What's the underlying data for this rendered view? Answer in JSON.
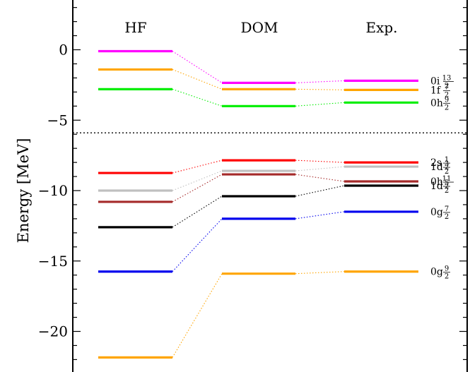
{
  "chart_data": {
    "type": "level-diagram",
    "ylabel": "Energy [MeV]",
    "ylim": [
      -22.4,
      3.2
    ],
    "yticks": [
      0,
      -5,
      -10,
      -15,
      -20
    ],
    "ytick_labels": [
      "0",
      "−5",
      "−10",
      "−15",
      "−20"
    ],
    "columns": [
      "HF",
      "DOM",
      "Exp."
    ],
    "separator_energy": -5.9,
    "levels": [
      {
        "orbital": "0i",
        "j_num": "13",
        "j_den": "2",
        "color": "#ff00ff",
        "values": [
          -0.1,
          -2.35,
          -2.2
        ]
      },
      {
        "orbital": "1f",
        "j_num": "7",
        "j_den": "2",
        "color": "#ffa500",
        "values": [
          -1.4,
          -2.8,
          -2.85
        ]
      },
      {
        "orbital": "0h",
        "j_num": "9",
        "j_den": "2",
        "color": "#00ee00",
        "values": [
          -2.8,
          -4.0,
          -3.75
        ]
      },
      {
        "orbital": "2s",
        "j_num": "1",
        "j_den": "2",
        "color": "#ff0000",
        "values": [
          -8.75,
          -7.85,
          -8.0
        ]
      },
      {
        "orbital": "1d",
        "j_num": "3",
        "j_den": "2",
        "color": "#c0c0c0",
        "values": [
          -10.0,
          -8.6,
          -8.3
        ]
      },
      {
        "orbital": "0h",
        "j_num": "11",
        "j_den": "2",
        "color": "#a52a2a",
        "values": [
          -10.8,
          -8.85,
          -9.35
        ]
      },
      {
        "orbital": "1d",
        "j_num": "5",
        "j_den": "2",
        "color": "#000000",
        "values": [
          -12.6,
          -10.4,
          -9.65
        ]
      },
      {
        "orbital": "0g",
        "j_num": "7",
        "j_den": "2",
        "color": "#0000ee",
        "values": [
          -15.75,
          -12.0,
          -11.5
        ]
      },
      {
        "orbital": "0g",
        "j_num": "9",
        "j_den": "2",
        "color": "#ffa500",
        "values": [
          -21.85,
          -15.9,
          -15.75
        ]
      }
    ]
  }
}
